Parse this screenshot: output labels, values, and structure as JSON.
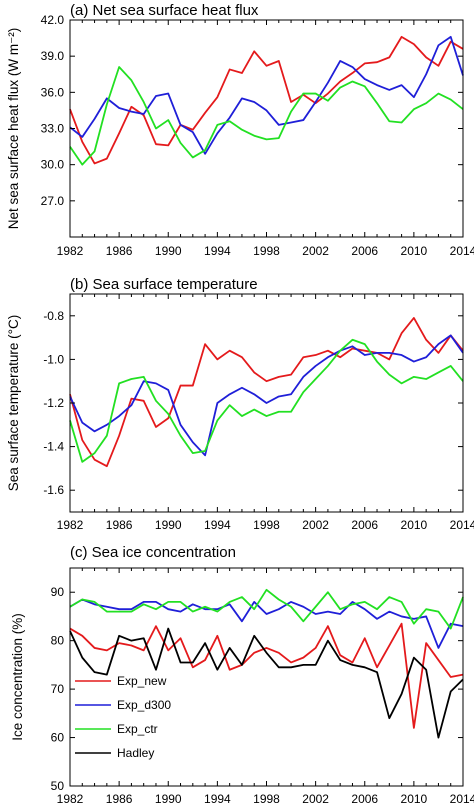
{
  "chart_data": [
    {
      "type": "line",
      "title": "(a) Net sea surface heat flux",
      "ylabel": "Net sea surface heat flux (W m⁻²)",
      "ylim": [
        24.0,
        42.0
      ],
      "yticks": [
        27.0,
        30.0,
        33.0,
        36.0,
        39.0,
        42.0
      ],
      "ytick_labels": [
        "27.0",
        "30.0",
        "33.0",
        "36.0",
        "39.0",
        "42.0"
      ],
      "xlim": [
        1982,
        2014
      ],
      "xticks": [
        1982,
        1986,
        1990,
        1994,
        1998,
        2002,
        2006,
        2010,
        2014
      ],
      "xtick_labels": [
        "1982",
        "1986",
        "1990",
        "1994",
        "1998",
        "2002",
        "2006",
        "2010",
        "2014"
      ],
      "grid": false,
      "x": [
        1982,
        1983,
        1984,
        1985,
        1986,
        1987,
        1988,
        1989,
        1990,
        1991,
        1992,
        1993,
        1994,
        1995,
        1996,
        1997,
        1998,
        1999,
        2000,
        2001,
        2002,
        2003,
        2004,
        2005,
        2006,
        2007,
        2008,
        2009,
        2010,
        2011,
        2012,
        2013,
        2014
      ],
      "series": [
        {
          "name": "Exp_new",
          "color": "#e41a1c",
          "values": [
            34.6,
            31.9,
            30.1,
            30.5,
            32.6,
            34.8,
            34.1,
            31.7,
            31.6,
            33.3,
            32.9,
            34.3,
            35.6,
            37.9,
            37.6,
            39.4,
            38.2,
            38.6,
            35.2,
            35.8,
            35.1,
            35.9,
            36.9,
            37.6,
            38.4,
            38.5,
            38.9,
            40.6,
            40.0,
            38.9,
            38.2,
            40.2,
            39.6
          ]
        },
        {
          "name": "Exp_d300",
          "color": "#1f1fd8",
          "values": [
            33.1,
            32.3,
            33.8,
            35.5,
            34.7,
            34.4,
            34.2,
            35.7,
            35.9,
            33.3,
            32.7,
            30.9,
            32.6,
            33.9,
            35.5,
            35.2,
            34.5,
            33.3,
            33.5,
            33.7,
            35.2,
            36.8,
            38.6,
            38.1,
            37.1,
            36.6,
            36.2,
            36.6,
            35.6,
            37.5,
            39.9,
            40.6,
            37.4
          ]
        },
        {
          "name": "Exp_ctr",
          "color": "#22e022",
          "values": [
            31.5,
            30.0,
            31.1,
            35.0,
            38.1,
            37.0,
            35.2,
            33.0,
            33.7,
            31.8,
            30.6,
            31.2,
            33.3,
            33.6,
            32.9,
            32.4,
            32.1,
            32.2,
            34.4,
            35.9,
            35.9,
            35.3,
            36.4,
            36.9,
            36.5,
            35.1,
            33.6,
            33.5,
            34.6,
            35.1,
            35.9,
            35.4,
            34.6
          ]
        }
      ]
    },
    {
      "type": "line",
      "title": "(b) Sea surface temperature",
      "ylabel": "Sea surface temperature (°C)",
      "ylim": [
        -1.7,
        -0.7
      ],
      "yticks": [
        -1.6,
        -1.4,
        -1.2,
        -1.0,
        -0.8
      ],
      "ytick_labels": [
        "-1.6",
        "-1.4",
        "-1.2",
        "-1.0",
        "-0.8"
      ],
      "xlim": [
        1982,
        2014
      ],
      "xticks": [
        1982,
        1986,
        1990,
        1994,
        1998,
        2002,
        2006,
        2010,
        2014
      ],
      "xtick_labels": [
        "1982",
        "1986",
        "1990",
        "1994",
        "1998",
        "2002",
        "2006",
        "2010",
        "2014"
      ],
      "grid": false,
      "x": [
        1982,
        1983,
        1984,
        1985,
        1986,
        1987,
        1988,
        1989,
        1990,
        1991,
        1992,
        1993,
        1994,
        1995,
        1996,
        1997,
        1998,
        1999,
        2000,
        2001,
        2002,
        2003,
        2004,
        2005,
        2006,
        2007,
        2008,
        2009,
        2010,
        2011,
        2012,
        2013,
        2014
      ],
      "series": [
        {
          "name": "Exp_new",
          "color": "#e41a1c",
          "values": [
            -1.16,
            -1.37,
            -1.46,
            -1.49,
            -1.35,
            -1.18,
            -1.19,
            -1.31,
            -1.27,
            -1.12,
            -1.12,
            -0.93,
            -1.0,
            -0.96,
            -0.99,
            -1.06,
            -1.1,
            -1.08,
            -1.07,
            -0.99,
            -0.98,
            -0.96,
            -0.99,
            -0.95,
            -0.96,
            -0.97,
            -1.0,
            -0.88,
            -0.81,
            -0.91,
            -0.97,
            -0.89,
            -0.96
          ]
        },
        {
          "name": "Exp_d300",
          "color": "#1f1fd8",
          "values": [
            -1.17,
            -1.29,
            -1.33,
            -1.3,
            -1.26,
            -1.21,
            -1.1,
            -1.11,
            -1.14,
            -1.3,
            -1.38,
            -1.44,
            -1.2,
            -1.16,
            -1.13,
            -1.16,
            -1.2,
            -1.17,
            -1.16,
            -1.08,
            -1.03,
            -0.99,
            -0.96,
            -0.94,
            -0.98,
            -0.97,
            -0.97,
            -0.98,
            -1.01,
            -0.99,
            -0.93,
            -0.89,
            -0.97
          ]
        },
        {
          "name": "Exp_ctr",
          "color": "#22e022",
          "values": [
            -1.28,
            -1.47,
            -1.43,
            -1.35,
            -1.11,
            -1.09,
            -1.08,
            -1.19,
            -1.25,
            -1.35,
            -1.43,
            -1.42,
            -1.28,
            -1.21,
            -1.26,
            -1.23,
            -1.26,
            -1.24,
            -1.24,
            -1.15,
            -1.09,
            -1.03,
            -0.96,
            -0.91,
            -0.93,
            -1.01,
            -1.07,
            -1.11,
            -1.08,
            -1.09,
            -1.06,
            -1.03,
            -1.1
          ]
        }
      ]
    },
    {
      "type": "line",
      "title": "(c) Sea ice concentration",
      "ylabel": "Ice concentration (%)",
      "ylim": [
        50,
        95
      ],
      "yticks": [
        50,
        60,
        70,
        80,
        90
      ],
      "ytick_labels": [
        "50",
        "60",
        "70",
        "80",
        "90"
      ],
      "xlim": [
        1982,
        2014
      ],
      "xticks": [
        1982,
        1986,
        1990,
        1994,
        1998,
        2002,
        2006,
        2010,
        2014
      ],
      "xtick_labels": [
        "1982",
        "1986",
        "1990",
        "1994",
        "1998",
        "2002",
        "2006",
        "2010",
        "2014"
      ],
      "grid": false,
      "legend_position": "lower-left",
      "x": [
        1982,
        1983,
        1984,
        1985,
        1986,
        1987,
        1988,
        1989,
        1990,
        1991,
        1992,
        1993,
        1994,
        1995,
        1996,
        1997,
        1998,
        1999,
        2000,
        2001,
        2002,
        2003,
        2004,
        2005,
        2006,
        2007,
        2008,
        2009,
        2010,
        2011,
        2012,
        2013,
        2014
      ],
      "series": [
        {
          "name": "Exp_new",
          "color": "#e41a1c",
          "values": [
            82.5,
            81.0,
            78.5,
            78.0,
            79.5,
            79.0,
            78.0,
            83.0,
            78.0,
            80.5,
            74.5,
            76.0,
            81.0,
            74.0,
            75.0,
            77.5,
            78.5,
            77.5,
            75.5,
            76.5,
            78.5,
            83.0,
            77.0,
            75.5,
            80.5,
            74.5,
            79.0,
            83.5,
            62.0,
            79.5,
            76.0,
            72.5,
            73.0
          ]
        },
        {
          "name": "Exp_d300",
          "color": "#1f1fd8",
          "values": [
            87.0,
            88.5,
            87.5,
            87.0,
            86.5,
            86.5,
            88.0,
            88.0,
            86.5,
            86.0,
            87.5,
            86.5,
            86.5,
            87.5,
            84.0,
            88.0,
            85.5,
            86.5,
            88.0,
            87.0,
            85.5,
            86.0,
            85.5,
            88.0,
            86.5,
            84.5,
            86.0,
            85.0,
            84.5,
            85.0,
            78.5,
            83.5,
            83.0
          ]
        },
        {
          "name": "Exp_ctr",
          "color": "#22e022",
          "values": [
            87.0,
            88.5,
            88.0,
            86.0,
            86.0,
            86.0,
            87.5,
            86.5,
            88.0,
            88.0,
            86.0,
            87.0,
            86.0,
            88.0,
            89.0,
            86.5,
            90.5,
            88.5,
            87.0,
            84.0,
            87.0,
            90.0,
            86.5,
            87.5,
            88.0,
            86.5,
            89.0,
            88.0,
            83.5,
            86.5,
            86.0,
            82.5,
            89.0
          ]
        },
        {
          "name": "Hadley",
          "color": "#000000",
          "values": [
            82.0,
            76.5,
            73.5,
            73.0,
            81.0,
            80.0,
            80.5,
            74.0,
            82.5,
            75.5,
            75.5,
            79.5,
            74.0,
            78.5,
            75.0,
            81.0,
            77.5,
            74.5,
            74.5,
            75.0,
            75.0,
            80.0,
            76.0,
            75.0,
            74.5,
            73.5,
            64.0,
            69.0,
            76.5,
            74.0,
            60.0,
            69.5,
            72.0
          ]
        }
      ]
    }
  ]
}
